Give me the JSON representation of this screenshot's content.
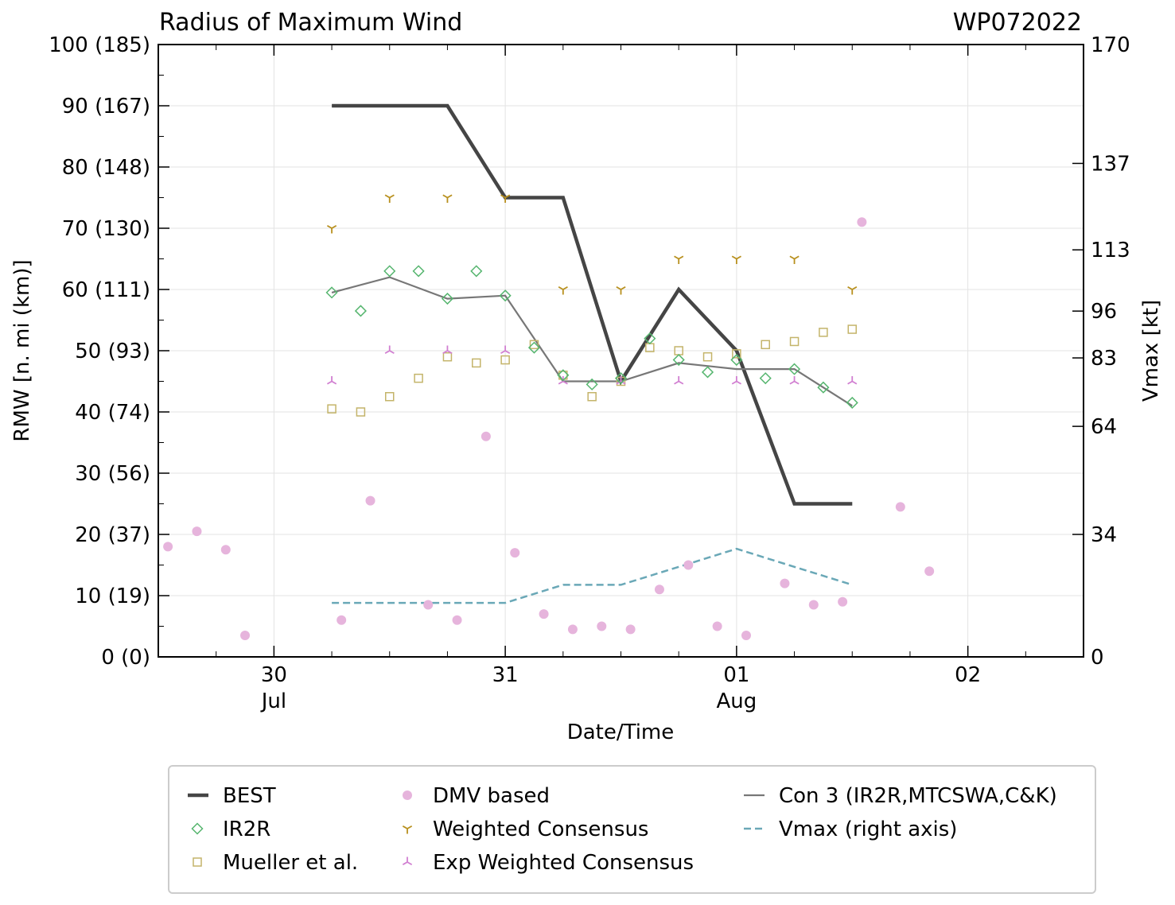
{
  "chart_data": {
    "type": "line",
    "title": "Radius of Maximum Wind",
    "storm_id": "WP072022",
    "xlabel": "Date/Time",
    "ylabel": "RMW [n. mi (km)]",
    "y2label": "Vmax [kt]",
    "x_unit": "hours since 30 Jul 00Z",
    "xlim": [
      -12,
      84
    ],
    "ylim": [
      0,
      100
    ],
    "y2lim": [
      0,
      170
    ],
    "x_ticks": [
      {
        "x": 0,
        "day": "30",
        "month": "Jul"
      },
      {
        "x": 24,
        "day": "31",
        "month": ""
      },
      {
        "x": 48,
        "day": "01",
        "month": "Aug"
      },
      {
        "x": 72,
        "day": "02",
        "month": ""
      }
    ],
    "y_ticks": [
      {
        "y": 0,
        "label": "0 (0)"
      },
      {
        "y": 10,
        "label": "10 (19)"
      },
      {
        "y": 20,
        "label": "20 (37)"
      },
      {
        "y": 30,
        "label": "30 (56)"
      },
      {
        "y": 40,
        "label": "40 (74)"
      },
      {
        "y": 50,
        "label": "50 (93)"
      },
      {
        "y": 60,
        "label": "60 (111)"
      },
      {
        "y": 70,
        "label": "70 (130)"
      },
      {
        "y": 80,
        "label": "80 (148)"
      },
      {
        "y": 90,
        "label": "90 (167)"
      },
      {
        "y": 100,
        "label": "100 (185)"
      }
    ],
    "y2_ticks": [
      {
        "v": 0,
        "label": "0"
      },
      {
        "v": 34,
        "label": "34"
      },
      {
        "v": 64,
        "label": "64"
      },
      {
        "v": 83,
        "label": "83"
      },
      {
        "v": 96,
        "label": "96"
      },
      {
        "v": 113,
        "label": "113"
      },
      {
        "v": 137,
        "label": "137"
      },
      {
        "v": 170,
        "label": "170"
      }
    ],
    "series": [
      {
        "name": "BEST",
        "kind": "line",
        "color": "#454545",
        "x": [
          6,
          12,
          18,
          24,
          30,
          36,
          42,
          48,
          54,
          60
        ],
        "y": [
          90,
          90,
          90,
          75,
          75,
          45,
          60,
          50,
          25,
          25
        ]
      },
      {
        "name": "Con 3 (IR2R,MTCSWA,C&K)",
        "kind": "line",
        "color": "#777777",
        "x": [
          6,
          12,
          18,
          24,
          30,
          36,
          42,
          48,
          54,
          60
        ],
        "y": [
          59.5,
          62,
          58.5,
          59,
          45,
          45,
          48,
          47,
          47,
          41
        ]
      },
      {
        "name": "Vmax (right axis)",
        "kind": "dashed",
        "axis": "right",
        "color": "#6aa8b7",
        "x": [
          6,
          12,
          18,
          24,
          30,
          36,
          42,
          48,
          54,
          60
        ],
        "y": [
          15,
          15,
          15,
          15,
          20,
          20,
          25,
          30,
          25,
          20
        ]
      },
      {
        "name": "IR2R",
        "kind": "diamond",
        "color": "#55b56e",
        "x": [
          6,
          9,
          12,
          15,
          18,
          21,
          24,
          27,
          30,
          33,
          36,
          39,
          42,
          45,
          48,
          51,
          54,
          57,
          60
        ],
        "y": [
          59.5,
          56.5,
          63,
          63,
          58.5,
          63,
          59,
          50.5,
          46,
          44.5,
          45.5,
          52,
          48.5,
          46.5,
          48.5,
          45.5,
          47,
          44,
          41.5
        ]
      },
      {
        "name": "Mueller et al.",
        "kind": "square",
        "color": "#c4b46a",
        "x": [
          6,
          9,
          12,
          15,
          18,
          21,
          24,
          27,
          30,
          33,
          36,
          39,
          42,
          45,
          48,
          51,
          54,
          57,
          60
        ],
        "y": [
          40.5,
          40,
          42.5,
          45.5,
          49,
          48,
          48.5,
          51,
          46,
          42.5,
          45,
          50.5,
          50,
          49,
          49.5,
          51,
          51.5,
          53,
          53.5
        ]
      },
      {
        "name": "DMV based",
        "kind": "dot",
        "color": "#e6b4dc",
        "x": [
          -11,
          -8,
          -5,
          -3,
          7,
          10,
          16,
          19,
          22,
          25,
          28,
          31,
          34,
          37,
          40,
          43,
          46,
          49,
          53,
          56,
          59,
          65,
          68
        ],
        "y": [
          18,
          20.5,
          17.5,
          3.5,
          6,
          25.5,
          8.5,
          6,
          36,
          17,
          7,
          4.5,
          5,
          4.5,
          11,
          15,
          5,
          3.5,
          12,
          8.5,
          9,
          24.5,
          14
        ]
      },
      {
        "name": "Weighted Consensus",
        "kind": "tri_down",
        "color": "#b8901e",
        "x": [
          6,
          12,
          18,
          24,
          30,
          36,
          42,
          48,
          54,
          60
        ],
        "y": [
          70,
          75,
          75,
          75,
          60,
          60,
          65,
          65,
          65,
          60
        ]
      },
      {
        "name": "Exp Weighted Consensus",
        "kind": "tri_up",
        "color": "#d17fd1",
        "x": [
          6,
          12,
          18,
          24,
          30,
          36,
          42,
          48,
          54,
          60
        ],
        "y": [
          45,
          50,
          50,
          50,
          45,
          45,
          45,
          45,
          45,
          45
        ]
      },
      {
        "name": "DMV outlier",
        "kind": "dot",
        "color": "#e6b4dc",
        "legend": false,
        "x": [
          61
        ],
        "y": [
          71
        ]
      }
    ],
    "legend": {
      "placement": "bottom",
      "columns": [
        [
          {
            "label": "BEST",
            "kind": "line",
            "color": "#454545"
          },
          {
            "label": "IR2R",
            "kind": "diamond",
            "color": "#55b56e"
          },
          {
            "label": "Mueller et al.",
            "kind": "square",
            "color": "#c4b46a"
          }
        ],
        [
          {
            "label": "DMV based",
            "kind": "dot",
            "color": "#e6b4dc"
          },
          {
            "label": "Weighted Consensus",
            "kind": "tri_down",
            "color": "#b8901e"
          },
          {
            "label": "Exp Weighted Consensus",
            "kind": "tri_up",
            "color": "#d17fd1"
          }
        ],
        [
          {
            "label": "Con 3 (IR2R,MTCSWA,C&K)",
            "kind": "thinline",
            "color": "#777777"
          },
          {
            "label": "Vmax (right axis)",
            "kind": "dashed",
            "color": "#6aa8b7"
          }
        ]
      ]
    }
  }
}
